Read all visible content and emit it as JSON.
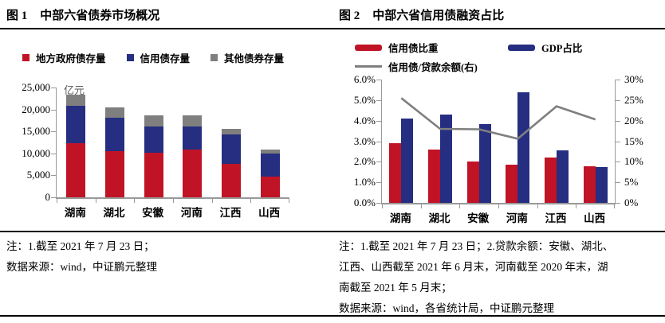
{
  "figures": [
    {
      "label": "图 1",
      "title": "中部六省债券市场概况",
      "notes": [
        "注：1.截至 2021 年 7 月 23 日；",
        "数据来源：wind，中证鹏元整理"
      ]
    },
    {
      "label": "图 2",
      "title": "中部六省信用债融资占比",
      "notes": [
        "注：1.截至 2021 年 7 月 23 日；2.贷款余额：安徽、湖北、",
        "江西、山西截至 2021 年 6 月末，河南截至 2020 年末，湖",
        "南截至 2021 年 5 月末；",
        "数据来源：wind，各省统计局，中证鹏元整理"
      ]
    }
  ],
  "chart_data": [
    {
      "type": "bar",
      "stacked": true,
      "title": "图 1 中部六省债券市场概况",
      "unit_label": "亿元",
      "categories": [
        "湖南",
        "湖北",
        "安徽",
        "河南",
        "江西",
        "山西"
      ],
      "series": [
        {
          "name": "地方政府债存量",
          "color": "#C01426",
          "values": [
            12300,
            10500,
            10200,
            10900,
            7600,
            4800
          ]
        },
        {
          "name": "信用债存量",
          "color": "#252E80",
          "values": [
            8600,
            7600,
            5900,
            5200,
            6700,
            5100
          ]
        },
        {
          "name": "其他债券存量",
          "color": "#7F7F7F",
          "values": [
            2400,
            2400,
            2600,
            2500,
            1300,
            1000
          ]
        }
      ],
      "ylim": [
        0,
        25000
      ],
      "yticks": [
        {
          "value": 0,
          "label": "0"
        },
        {
          "value": 5000,
          "label": "5,000"
        },
        {
          "value": 10000,
          "label": "10,000"
        },
        {
          "value": 15000,
          "label": "15,000"
        },
        {
          "value": 20000,
          "label": "20,000"
        },
        {
          "value": 25000,
          "label": "25,000"
        }
      ],
      "grid": false,
      "legend_position": "top"
    },
    {
      "type": "bar+line",
      "title": "图 2 中部六省信用债融资占比",
      "categories": [
        "湖南",
        "湖北",
        "安徽",
        "河南",
        "江西",
        "山西"
      ],
      "series": [
        {
          "name": "信用债比重",
          "kind": "bar",
          "axis": "left",
          "color": "#C01426",
          "values": [
            2.9,
            2.6,
            2.0,
            1.85,
            2.2,
            1.8
          ]
        },
        {
          "name": "GDP占比",
          "kind": "bar",
          "axis": "left",
          "color": "#252E80",
          "values": [
            4.1,
            4.3,
            3.85,
            5.4,
            2.55,
            1.75
          ]
        },
        {
          "name": "信用债/贷款余额(右)",
          "kind": "line",
          "axis": "right",
          "color": "#7F7F7F",
          "values": [
            25.5,
            18.0,
            17.9,
            15.6,
            23.5,
            20.3
          ]
        }
      ],
      "ylim_left": [
        0,
        6
      ],
      "ylim_right": [
        0,
        30
      ],
      "yticks_left": [
        {
          "value": 0,
          "label": "0.0%"
        },
        {
          "value": 1,
          "label": "1.0%"
        },
        {
          "value": 2,
          "label": "2.0%"
        },
        {
          "value": 3,
          "label": "3.0%"
        },
        {
          "value": 4,
          "label": "4.0%"
        },
        {
          "value": 5,
          "label": "5.0%"
        },
        {
          "value": 6,
          "label": "6.0%"
        }
      ],
      "yticks_right": [
        {
          "value": 0,
          "label": "0%"
        },
        {
          "value": 5,
          "label": "5%"
        },
        {
          "value": 10,
          "label": "10%"
        },
        {
          "value": 15,
          "label": "15%"
        },
        {
          "value": 20,
          "label": "20%"
        },
        {
          "value": 25,
          "label": "25%"
        },
        {
          "value": 30,
          "label": "30%"
        }
      ],
      "grid": false,
      "legend_position": "top"
    }
  ]
}
